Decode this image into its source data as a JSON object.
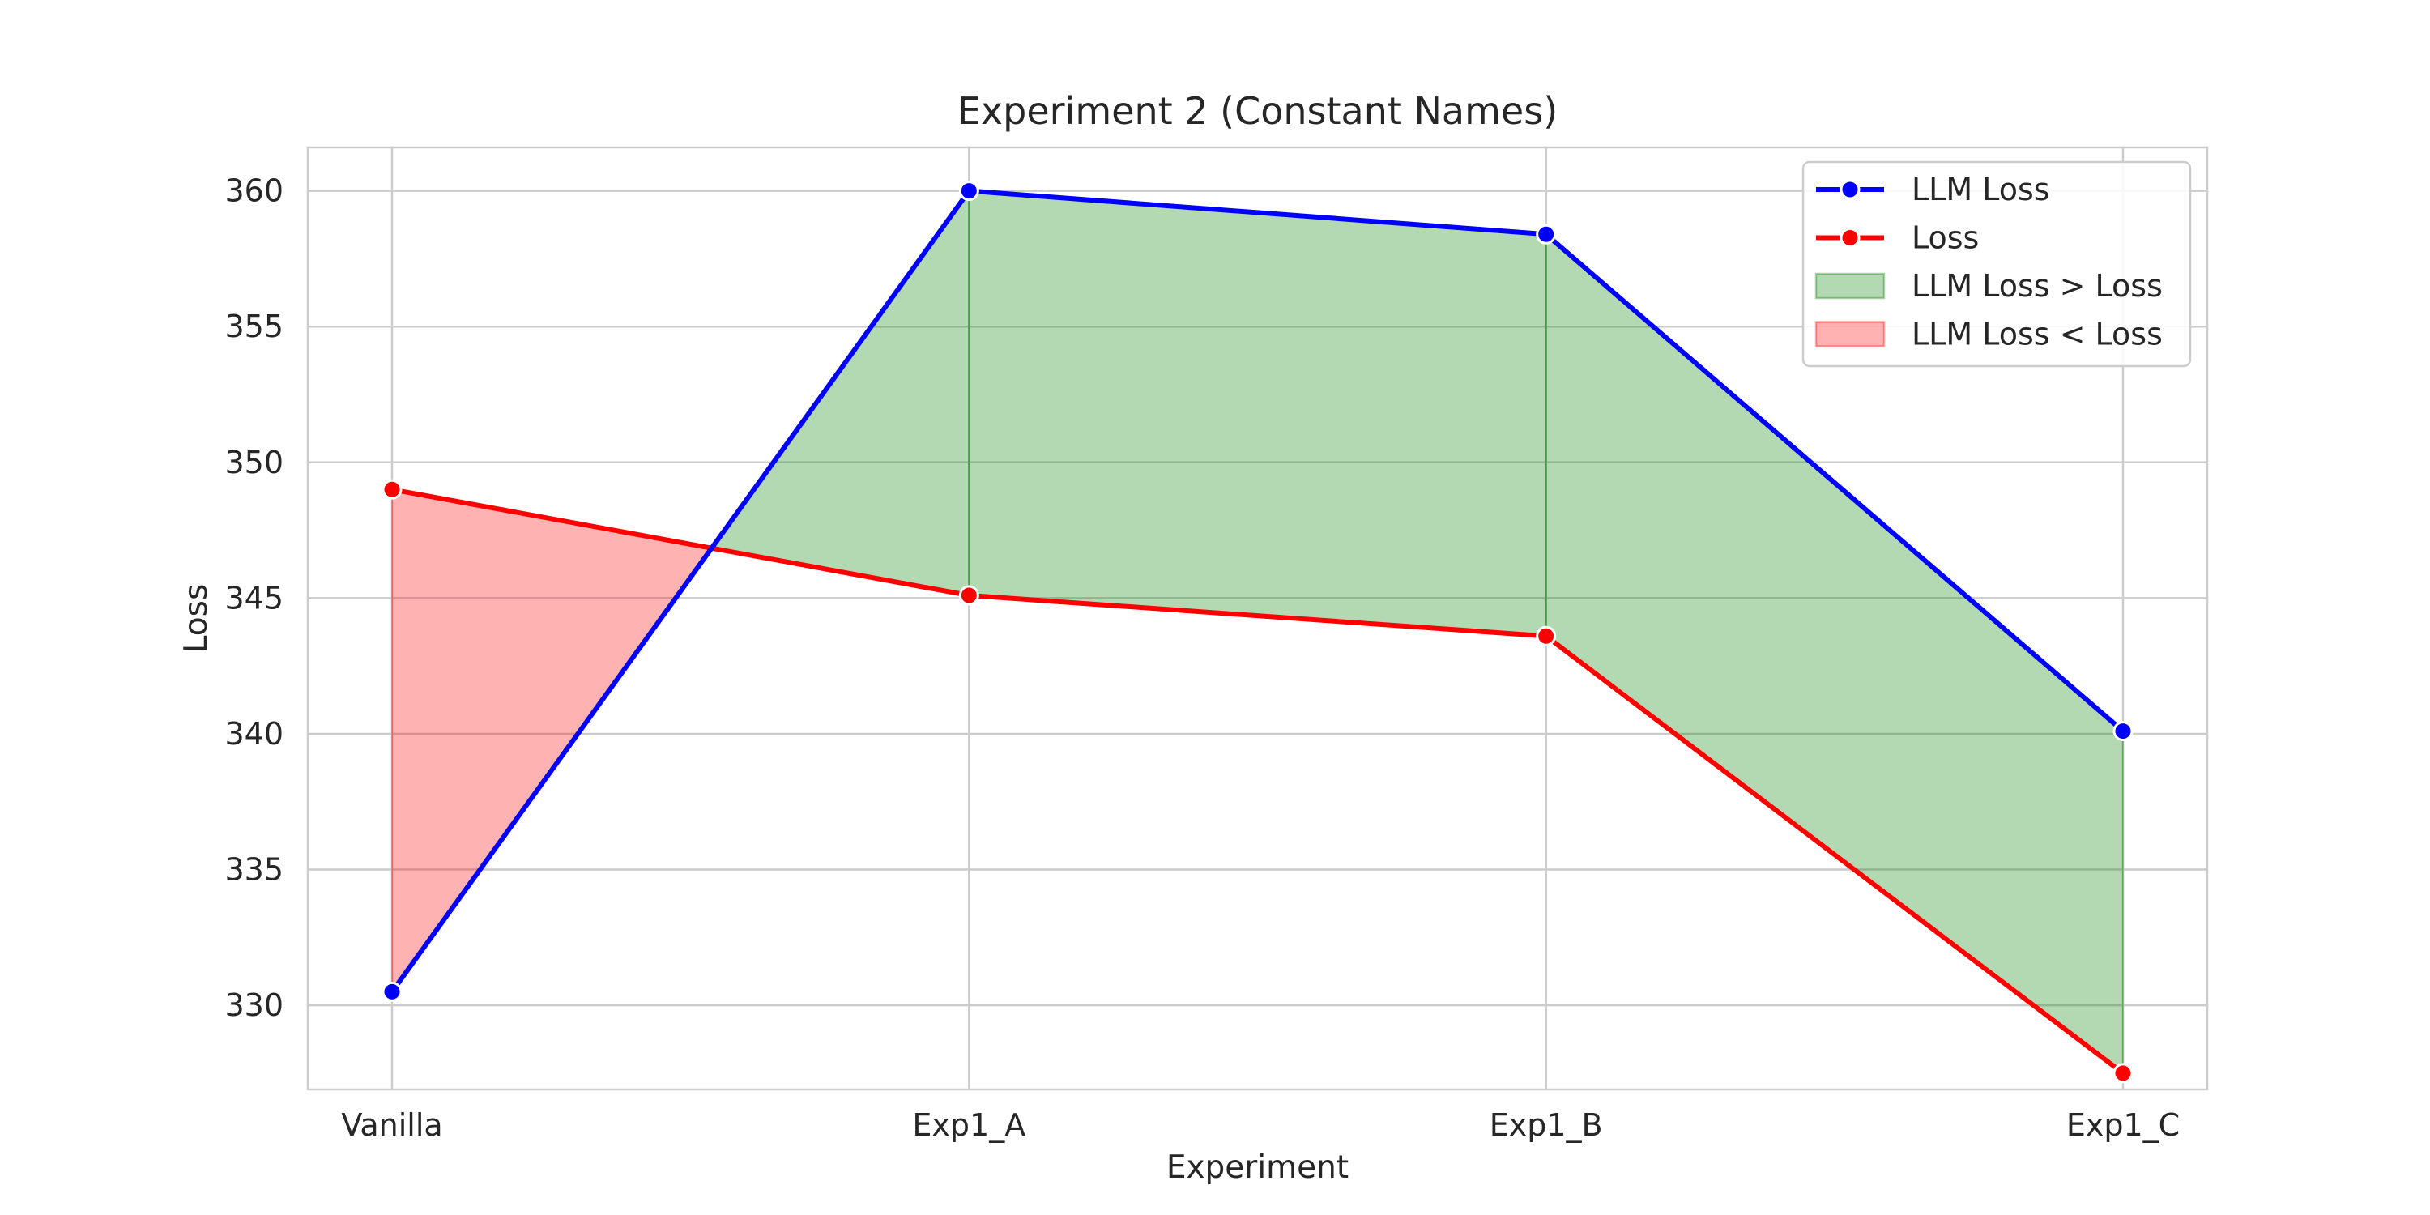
{
  "chart_data": {
    "type": "line",
    "title": "Experiment 2 (Constant Names)",
    "xlabel": "Experiment",
    "ylabel": "Loss",
    "categories": [
      "Vanilla",
      "Exp1_A",
      "Exp1_B",
      "Exp1_C"
    ],
    "ylim": [
      326.9,
      361.6
    ],
    "yticks": [
      330,
      335,
      340,
      345,
      350,
      355,
      360
    ],
    "grid": true,
    "legend_position": "top-right",
    "series": [
      {
        "name": "LLM Loss",
        "color": "#0000ff",
        "values": [
          330.5,
          360.0,
          358.4,
          340.1
        ]
      },
      {
        "name": "Loss",
        "color": "#ff0000",
        "values": [
          349.0,
          345.1,
          343.6,
          327.5
        ]
      }
    ],
    "fills": [
      {
        "name": "LLM Loss > Loss",
        "color": "#008000",
        "condition": "greater"
      },
      {
        "name": "LLM Loss < Loss",
        "color": "#ff0000",
        "condition": "less"
      }
    ]
  }
}
